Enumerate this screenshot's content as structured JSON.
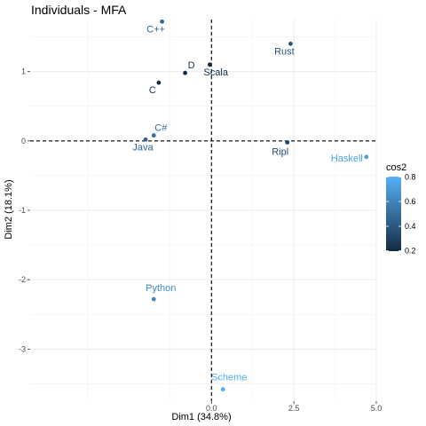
{
  "chart_data": {
    "type": "scatter",
    "title": "Individuals - MFA",
    "xlabel": "Dim1 (34.8%)",
    "ylabel": "Dim2 (18.1%)",
    "xlim": [
      -5.5,
      5.0
    ],
    "ylim": [
      -3.75,
      1.75
    ],
    "x_ticks": [
      0,
      2.5,
      5
    ],
    "x_tick_labels": [
      "0.0",
      "2.5",
      "5.0"
    ],
    "y_ticks": [
      -3,
      -2,
      -1,
      0,
      1
    ],
    "y_tick_labels": [
      "-3",
      "-2",
      "-1",
      "0",
      "1"
    ],
    "reference_lines": {
      "x": 0,
      "y": 0,
      "style": "dashed"
    },
    "grid": true,
    "points": [
      {
        "label": "C++",
        "x": -1.5,
        "y": 1.72,
        "cos2": 0.45
      },
      {
        "label": "Rust",
        "x": 2.4,
        "y": 1.4,
        "cos2": 0.38
      },
      {
        "label": "D",
        "x": -0.8,
        "y": 0.98,
        "cos2": 0.22
      },
      {
        "label": "Scala",
        "x": -0.05,
        "y": 1.1,
        "cos2": 0.15
      },
      {
        "label": "C",
        "x": -1.6,
        "y": 0.84,
        "cos2": 0.22
      },
      {
        "label": "C#",
        "x": -1.75,
        "y": 0.08,
        "cos2": 0.5
      },
      {
        "label": "Java",
        "x": -2.0,
        "y": 0.02,
        "cos2": 0.45
      },
      {
        "label": "Ripl",
        "x": 2.3,
        "y": -0.02,
        "cos2": 0.32
      },
      {
        "label": "Haskell",
        "x": 4.7,
        "y": -0.23,
        "cos2": 0.72
      },
      {
        "label": "Python",
        "x": -1.75,
        "y": -2.28,
        "cos2": 0.62
      },
      {
        "label": "Scheme",
        "x": 0.35,
        "y": -3.58,
        "cos2": 0.78
      }
    ],
    "legend": {
      "title": "cos2",
      "placement": "right",
      "range": [
        0.2,
        0.8
      ],
      "ticks": [
        "0.2",
        "0.4",
        "0.6",
        "0.8"
      ],
      "colors": {
        "low": "#132b43",
        "high": "#56b1f7"
      }
    }
  }
}
